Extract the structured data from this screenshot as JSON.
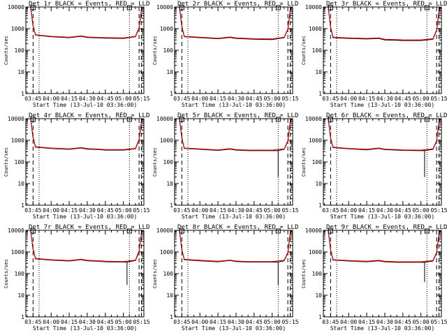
{
  "colors": {
    "events": "#000000",
    "lld": "#dd0000",
    "background": "#ffffff"
  },
  "chart_data": [
    {
      "type": "line",
      "title": "Det 1r BLACK = Events, RED = LLD",
      "xlabel": "Start Time (13-Jul-10 03:36:00)",
      "ylabel": "Counts/sec",
      "yscale": "log",
      "ylim": [
        1,
        10000
      ],
      "xlim": [
        "03:39",
        "05:17"
      ],
      "x_ticks": [
        "03:45",
        "04:00",
        "04:15",
        "04:30",
        "04:45",
        "05:00",
        "05:15"
      ],
      "y_ticks": [
        "1",
        "10",
        "100",
        "1000",
        "10000"
      ],
      "series": [
        {
          "name": "Events",
          "x": [
            "03:39",
            "03:43",
            "03:45",
            "03:47",
            "04:00",
            "04:15",
            "04:25",
            "04:30",
            "04:40",
            "04:45",
            "05:00",
            "05:10",
            "05:13",
            "05:15",
            "05:16"
          ],
          "values": [
            10000,
            10000,
            1300,
            500,
            420,
            380,
            440,
            390,
            370,
            360,
            350,
            420,
            1000,
            8000,
            10000
          ]
        },
        {
          "name": "LLD",
          "x": [
            "03:39",
            "03:43",
            "03:45",
            "03:47",
            "04:00",
            "04:15",
            "04:25",
            "04:30",
            "04:40",
            "04:45",
            "05:00",
            "05:10",
            "05:13",
            "05:15",
            "05:16"
          ],
          "values": [
            10000,
            10000,
            1400,
            520,
            440,
            400,
            460,
            410,
            390,
            380,
            370,
            440,
            1100,
            8500,
            10000
          ]
        }
      ],
      "markers": {
        "dashed": [
          "03:45",
          "05:13",
          "05:15"
        ],
        "dotted": [
          "03:50",
          "05:05"
        ]
      }
    },
    {
      "type": "line",
      "title": "Det 2r BLACK = Events, RED = LLD",
      "xlabel": "Start Time (13-Jul-10 03:36:00)",
      "ylabel": "Counts/sec",
      "yscale": "log",
      "ylim": [
        1,
        10000
      ],
      "xlim": [
        "03:39",
        "05:17"
      ],
      "x_ticks": [
        "03:45",
        "04:00",
        "04:15",
        "04:30",
        "04:45",
        "05:00",
        "05:15"
      ],
      "y_ticks": [
        "1",
        "10",
        "100",
        "1000",
        "10000"
      ],
      "series": [
        {
          "name": "Events",
          "x": [
            "03:39",
            "03:43",
            "03:45",
            "03:47",
            "04:00",
            "04:15",
            "04:25",
            "04:30",
            "04:40",
            "04:45",
            "05:00",
            "05:10",
            "05:13",
            "05:15",
            "05:16"
          ],
          "values": [
            10000,
            10000,
            1200,
            420,
            380,
            340,
            390,
            350,
            330,
            320,
            310,
            380,
            900,
            7000,
            10000
          ]
        },
        {
          "name": "LLD",
          "x": [
            "03:39",
            "03:43",
            "03:45",
            "03:47",
            "04:00",
            "04:15",
            "04:25",
            "04:30",
            "04:40",
            "04:45",
            "05:00",
            "05:10",
            "05:13",
            "05:15",
            "05:16"
          ],
          "values": [
            10000,
            10000,
            1300,
            440,
            400,
            360,
            410,
            370,
            350,
            340,
            330,
            400,
            950,
            7500,
            10000
          ]
        }
      ],
      "markers": {
        "dashed": [
          "03:45",
          "05:13",
          "05:15"
        ],
        "dotted": [
          "03:50",
          "05:05"
        ]
      }
    },
    {
      "type": "line",
      "title": "Det 3r BLACK = Events, RED = LLD",
      "xlabel": "Start Time (13-Jul-10 03:36:00)",
      "ylabel": "Counts/sec",
      "yscale": "log",
      "ylim": [
        1,
        10000
      ],
      "xlim": [
        "03:39",
        "05:17"
      ],
      "x_ticks": [
        "03:45",
        "04:00",
        "04:15",
        "04:30",
        "04:45",
        "05:00",
        "05:15"
      ],
      "y_ticks": [
        "1",
        "10",
        "100",
        "1000",
        "10000"
      ],
      "series": [
        {
          "name": "Events",
          "x": [
            "03:39",
            "03:43",
            "03:45",
            "03:47",
            "04:00",
            "04:15",
            "04:25",
            "04:30",
            "04:40",
            "04:45",
            "05:00",
            "05:10",
            "05:13",
            "05:15",
            "05:16"
          ],
          "values": [
            10000,
            10000,
            1100,
            380,
            350,
            330,
            350,
            300,
            290,
            280,
            280,
            320,
            800,
            6000,
            10000
          ]
        },
        {
          "name": "LLD",
          "x": [
            "03:39",
            "03:43",
            "03:45",
            "03:47",
            "04:00",
            "04:15",
            "04:25",
            "04:30",
            "04:40",
            "04:45",
            "05:00",
            "05:10",
            "05:13",
            "05:15",
            "05:16"
          ],
          "values": [
            10000,
            10000,
            1200,
            400,
            370,
            350,
            370,
            320,
            310,
            300,
            300,
            340,
            850,
            6500,
            10000
          ]
        }
      ],
      "markers": {
        "dashed": [
          "03:45",
          "05:13",
          "05:15"
        ],
        "dotted": [
          "03:50",
          "05:05"
        ]
      }
    },
    {
      "type": "line",
      "title": "Det 4r BLACK = Events, RED = LLD",
      "xlabel": "Start Time (13-Jul-10 03:36:00)",
      "ylabel": "Counts/sec",
      "yscale": "log",
      "ylim": [
        1,
        10000
      ],
      "xlim": [
        "03:39",
        "05:17"
      ],
      "x_ticks": [
        "03:45",
        "04:00",
        "04:15",
        "04:30",
        "04:45",
        "05:00",
        "05:15"
      ],
      "y_ticks": [
        "1",
        "10",
        "100",
        "1000",
        "10000"
      ],
      "series": [
        {
          "name": "Events",
          "x": [
            "03:39",
            "03:43",
            "03:45",
            "03:47",
            "04:00",
            "04:15",
            "04:25",
            "04:30",
            "04:40",
            "04:45",
            "05:00",
            "05:10",
            "05:13",
            "05:15",
            "05:16"
          ],
          "values": [
            10000,
            10000,
            1300,
            480,
            420,
            380,
            440,
            390,
            370,
            350,
            350,
            400,
            1000,
            8000,
            10000
          ]
        },
        {
          "name": "LLD",
          "x": [
            "03:39",
            "03:43",
            "03:45",
            "03:47",
            "04:00",
            "04:15",
            "04:25",
            "04:30",
            "04:40",
            "04:45",
            "05:00",
            "05:10",
            "05:13",
            "05:15",
            "05:16"
          ],
          "values": [
            10000,
            10000,
            1400,
            500,
            440,
            400,
            460,
            410,
            390,
            370,
            370,
            420,
            1100,
            8500,
            10000
          ]
        }
      ],
      "markers": {
        "dashed": [
          "03:45",
          "05:13",
          "05:15"
        ],
        "dotted": [
          "03:50",
          "05:05"
        ]
      }
    },
    {
      "type": "line",
      "title": "Det 5r BLACK = Events, RED = LLD",
      "xlabel": "Start Time (13-Jul-10 03:36:00)",
      "ylabel": "Counts/sec",
      "yscale": "log",
      "ylim": [
        1,
        10000
      ],
      "xlim": [
        "03:39",
        "05:17"
      ],
      "x_ticks": [
        "03:45",
        "04:00",
        "04:15",
        "04:30",
        "04:45",
        "05:00",
        "05:15"
      ],
      "y_ticks": [
        "1",
        "10",
        "100",
        "1000",
        "10000"
      ],
      "series": [
        {
          "name": "Events",
          "x": [
            "03:39",
            "03:43",
            "03:45",
            "03:47",
            "04:00",
            "04:15",
            "04:25",
            "04:30",
            "04:40",
            "04:45",
            "05:00",
            "05:05",
            "05:05",
            "05:05",
            "05:10",
            "05:13",
            "05:15",
            "05:16"
          ],
          "values": [
            10000,
            10000,
            1200,
            420,
            380,
            340,
            390,
            350,
            330,
            330,
            330,
            330,
            20,
            330,
            380,
            900,
            7000,
            10000
          ]
        },
        {
          "name": "LLD",
          "x": [
            "03:39",
            "03:43",
            "03:45",
            "03:47",
            "04:00",
            "04:15",
            "04:25",
            "04:30",
            "04:40",
            "04:45",
            "05:00",
            "05:10",
            "05:13",
            "05:15",
            "05:16"
          ],
          "values": [
            10000,
            10000,
            1300,
            440,
            400,
            360,
            410,
            370,
            350,
            350,
            350,
            400,
            950,
            7500,
            10000
          ]
        }
      ],
      "markers": {
        "dashed": [
          "03:45",
          "05:13",
          "05:15"
        ],
        "dotted": [
          "03:50",
          "05:05"
        ]
      }
    },
    {
      "type": "line",
      "title": "Det 6r BLACK = Events, RED = LLD",
      "xlabel": "Start Time (13-Jul-10 03:36:00)",
      "ylabel": "Counts/sec",
      "yscale": "log",
      "ylim": [
        1,
        10000
      ],
      "xlim": [
        "03:39",
        "05:17"
      ],
      "x_ticks": [
        "03:45",
        "04:00",
        "04:15",
        "04:30",
        "04:45",
        "05:00",
        "05:15"
      ],
      "y_ticks": [
        "1",
        "10",
        "100",
        "1000",
        "10000"
      ],
      "series": [
        {
          "name": "Events",
          "x": [
            "03:39",
            "03:43",
            "03:45",
            "03:47",
            "04:00",
            "04:15",
            "04:25",
            "04:30",
            "04:40",
            "04:45",
            "05:00",
            "05:03",
            "05:03",
            "05:03",
            "05:10",
            "05:13",
            "05:15",
            "05:16"
          ],
          "values": [
            10000,
            10000,
            1200,
            460,
            400,
            360,
            420,
            370,
            350,
            340,
            330,
            330,
            20,
            330,
            380,
            900,
            7000,
            10000
          ]
        },
        {
          "name": "LLD",
          "x": [
            "03:39",
            "03:43",
            "03:45",
            "03:47",
            "04:00",
            "04:15",
            "04:25",
            "04:30",
            "04:40",
            "04:45",
            "05:00",
            "05:10",
            "05:13",
            "05:15",
            "05:16"
          ],
          "values": [
            10000,
            10000,
            1300,
            480,
            420,
            380,
            440,
            390,
            370,
            360,
            350,
            400,
            950,
            7500,
            10000
          ]
        }
      ],
      "markers": {
        "dashed": [
          "03:45",
          "05:13",
          "05:15"
        ],
        "dotted": [
          "03:50",
          "05:05"
        ]
      }
    },
    {
      "type": "line",
      "title": "Det 7r BLACK = Events, RED = LLD",
      "xlabel": "Start Time (13-Jul-10 03:36:00)",
      "ylabel": "Counts/sec",
      "yscale": "log",
      "ylim": [
        1,
        10000
      ],
      "xlim": [
        "03:39",
        "05:17"
      ],
      "x_ticks": [
        "03:45",
        "04:00",
        "04:15",
        "04:30",
        "04:45",
        "05:00",
        "05:15"
      ],
      "y_ticks": [
        "1",
        "10",
        "100",
        "1000",
        "10000"
      ],
      "series": [
        {
          "name": "Events",
          "x": [
            "03:39",
            "03:43",
            "03:45",
            "03:47",
            "04:00",
            "04:15",
            "04:25",
            "04:30",
            "04:40",
            "04:45",
            "05:00",
            "05:03",
            "05:03",
            "05:03",
            "05:10",
            "05:13",
            "05:15",
            "05:16"
          ],
          "values": [
            10000,
            10000,
            1300,
            480,
            420,
            380,
            440,
            390,
            370,
            350,
            340,
            340,
            30,
            340,
            400,
            1000,
            8000,
            10000
          ]
        },
        {
          "name": "LLD",
          "x": [
            "03:39",
            "03:43",
            "03:45",
            "03:47",
            "04:00",
            "04:15",
            "04:25",
            "04:30",
            "04:40",
            "04:45",
            "05:00",
            "05:10",
            "05:13",
            "05:15",
            "05:16"
          ],
          "values": [
            10000,
            10000,
            1400,
            500,
            440,
            400,
            460,
            410,
            390,
            370,
            360,
            420,
            1100,
            8500,
            10000
          ]
        }
      ],
      "markers": {
        "dashed": [
          "03:45",
          "05:13",
          "05:15"
        ],
        "dotted": [
          "03:50",
          "05:05"
        ]
      }
    },
    {
      "type": "line",
      "title": "Det 8r BLACK = Events, RED = LLD",
      "xlabel": "Start Time (13-Jul-10 03:36:00)",
      "ylabel": "Counts/sec",
      "yscale": "log",
      "ylim": [
        1,
        10000
      ],
      "xlim": [
        "03:39",
        "05:17"
      ],
      "x_ticks": [
        "03:45",
        "04:00",
        "04:15",
        "04:30",
        "04:45",
        "05:00",
        "05:15"
      ],
      "y_ticks": [
        "1",
        "10",
        "100",
        "1000",
        "10000"
      ],
      "series": [
        {
          "name": "Events",
          "x": [
            "03:39",
            "03:43",
            "03:45",
            "03:47",
            "04:00",
            "04:15",
            "04:25",
            "04:30",
            "04:40",
            "04:45",
            "05:00",
            "05:05",
            "05:05",
            "05:05",
            "05:10",
            "05:13",
            "05:15",
            "05:16"
          ],
          "values": [
            10000,
            10000,
            1200,
            440,
            390,
            350,
            400,
            360,
            340,
            340,
            340,
            340,
            30,
            340,
            390,
            900,
            7000,
            10000
          ]
        },
        {
          "name": "LLD",
          "x": [
            "03:39",
            "03:43",
            "03:45",
            "03:47",
            "04:00",
            "04:15",
            "04:25",
            "04:30",
            "04:40",
            "04:45",
            "05:00",
            "05:10",
            "05:13",
            "05:15",
            "05:16"
          ],
          "values": [
            10000,
            10000,
            1300,
            460,
            410,
            370,
            420,
            380,
            360,
            360,
            360,
            410,
            950,
            7500,
            10000
          ]
        }
      ],
      "markers": {
        "dashed": [
          "03:45",
          "05:13",
          "05:15"
        ],
        "dotted": [
          "03:50",
          "05:05"
        ]
      }
    },
    {
      "type": "line",
      "title": "Det 9r BLACK = Events, RED = LLD",
      "xlabel": "Start Time (13-Jul-10 03:36:00)",
      "ylabel": "Counts/sec",
      "yscale": "log",
      "ylim": [
        1,
        10000
      ],
      "xlim": [
        "03:39",
        "05:17"
      ],
      "x_ticks": [
        "03:45",
        "04:00",
        "04:15",
        "04:30",
        "04:45",
        "05:00",
        "05:15"
      ],
      "y_ticks": [
        "1",
        "10",
        "100",
        "1000",
        "10000"
      ],
      "series": [
        {
          "name": "Events",
          "x": [
            "03:39",
            "03:43",
            "03:45",
            "03:47",
            "04:00",
            "04:15",
            "04:25",
            "04:30",
            "04:40",
            "04:45",
            "05:00",
            "05:03",
            "05:03",
            "05:03",
            "05:10",
            "05:13",
            "05:15",
            "05:16"
          ],
          "values": [
            10000,
            10000,
            1200,
            420,
            380,
            350,
            390,
            350,
            330,
            330,
            330,
            330,
            40,
            330,
            380,
            900,
            7000,
            10000
          ]
        },
        {
          "name": "LLD",
          "x": [
            "03:39",
            "03:43",
            "03:45",
            "03:47",
            "04:00",
            "04:15",
            "04:25",
            "04:30",
            "04:40",
            "04:45",
            "05:00",
            "05:10",
            "05:13",
            "05:15",
            "05:16"
          ],
          "values": [
            10000,
            10000,
            1300,
            440,
            400,
            370,
            410,
            370,
            350,
            350,
            350,
            400,
            950,
            7500,
            10000
          ]
        }
      ],
      "markers": {
        "dashed": [
          "03:45",
          "05:13",
          "05:15"
        ],
        "dotted": [
          "03:50",
          "05:05"
        ]
      }
    }
  ]
}
